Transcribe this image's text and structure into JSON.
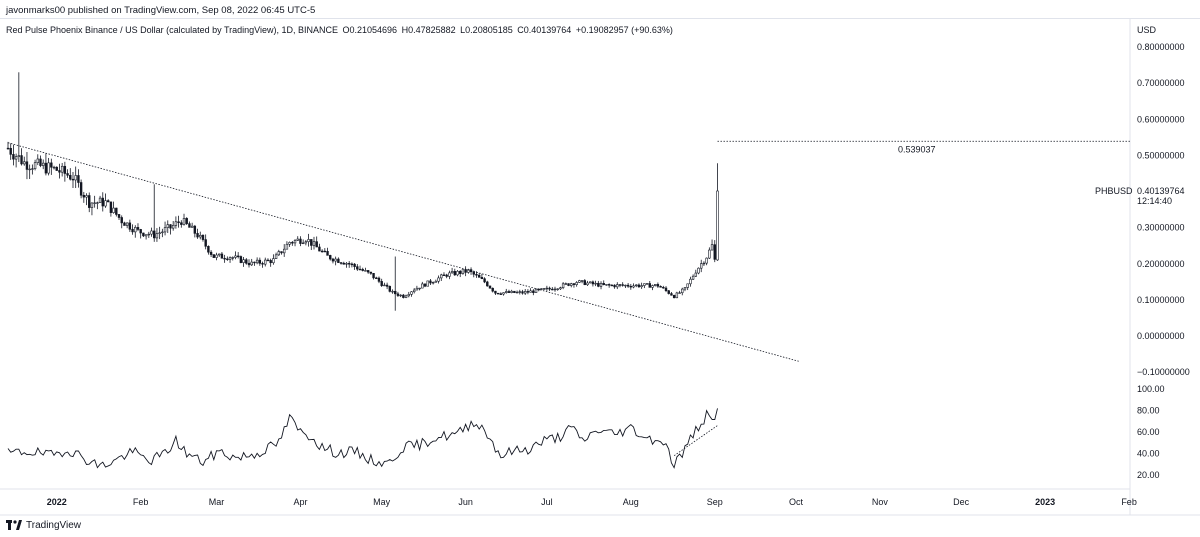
{
  "header": {
    "publisher_line": "javonmarks00 published on TradingView.com, Sep 08, 2022 06:45 UTC-5"
  },
  "legend": {
    "symbol": "Red Pulse Phoenix Binance / US Dollar (calculated by TradingView), 1D, BINANCE",
    "open": "O0.21054696",
    "high": "H0.47825882",
    "low": "L0.20805185",
    "close": "C0.40139764",
    "change": "+0.19082957 (+90.63%)"
  },
  "axis": {
    "currency": "USD"
  },
  "price_label": {
    "ticker": "PHBUSD",
    "value": "0.40139764",
    "countdown": "12:14:40"
  },
  "level_label": "0.539037",
  "footer": {
    "brand": "TradingView"
  },
  "colors": {
    "candle": "#131722",
    "line": "#131722",
    "background": "#ffffff",
    "grid_text": "#131722"
  },
  "chart_data": [
    {
      "type": "candlestick",
      "title": "",
      "ylim": [
        -0.12,
        0.83
      ],
      "yticks": [
        -0.1,
        0.0,
        0.1,
        0.2,
        0.3,
        0.4,
        0.5,
        0.6,
        0.7,
        0.8
      ],
      "ytick_labels": [
        "−0.10000000",
        "0.00000000",
        "0.10000000",
        "0.20000000",
        "0.30000000",
        "",
        "0.50000000",
        "0.60000000",
        "0.70000000",
        "0.80000000"
      ],
      "xlim_days": [
        0,
        400
      ],
      "xticks": [
        {
          "day": 18,
          "label": "2022"
        },
        {
          "day": 49,
          "label": "Feb"
        },
        {
          "day": 77,
          "label": "Mar"
        },
        {
          "day": 108,
          "label": "Apr"
        },
        {
          "day": 138,
          "label": "May"
        },
        {
          "day": 169,
          "label": "Jun"
        },
        {
          "day": 199,
          "label": "Jul"
        },
        {
          "day": 230,
          "label": "Aug"
        },
        {
          "day": 261,
          "label": "Sep"
        },
        {
          "day": 291,
          "label": "Oct"
        },
        {
          "day": 322,
          "label": "Nov"
        },
        {
          "day": 352,
          "label": "Dec"
        },
        {
          "day": 383,
          "label": "2023"
        },
        {
          "day": 414,
          "label": "Feb"
        }
      ],
      "close_profile": [
        [
          0,
          0.52
        ],
        [
          6,
          0.48
        ],
        [
          12,
          0.47
        ],
        [
          18,
          0.46
        ],
        [
          24,
          0.44
        ],
        [
          30,
          0.37
        ],
        [
          36,
          0.37
        ],
        [
          42,
          0.32
        ],
        [
          48,
          0.29
        ],
        [
          54,
          0.28
        ],
        [
          60,
          0.3
        ],
        [
          64,
          0.32
        ],
        [
          70,
          0.28
        ],
        [
          76,
          0.22
        ],
        [
          82,
          0.22
        ],
        [
          90,
          0.2
        ],
        [
          98,
          0.21
        ],
        [
          104,
          0.26
        ],
        [
          110,
          0.27
        ],
        [
          118,
          0.22
        ],
        [
          126,
          0.2
        ],
        [
          134,
          0.17
        ],
        [
          142,
          0.12
        ],
        [
          146,
          0.11
        ],
        [
          150,
          0.13
        ],
        [
          156,
          0.15
        ],
        [
          162,
          0.17
        ],
        [
          170,
          0.18
        ],
        [
          176,
          0.15
        ],
        [
          180,
          0.12
        ],
        [
          190,
          0.12
        ],
        [
          200,
          0.13
        ],
        [
          210,
          0.15
        ],
        [
          220,
          0.14
        ],
        [
          230,
          0.14
        ],
        [
          240,
          0.14
        ],
        [
          246,
          0.11
        ],
        [
          250,
          0.13
        ],
        [
          254,
          0.18
        ],
        [
          258,
          0.22
        ],
        [
          260,
          0.25
        ],
        [
          261,
          0.21
        ],
        [
          262,
          0.4
        ]
      ],
      "trendline": {
        "from": {
          "day": 0,
          "price": 0.535
        },
        "to": {
          "day": 292,
          "price": -0.07
        }
      },
      "horizontal_level": {
        "price": 0.539037,
        "from_day": 262
      },
      "last_price": 0.40139764
    },
    {
      "type": "line",
      "title": "",
      "ylim": [
        10,
        105
      ],
      "yticks": [
        20,
        40,
        60,
        80,
        100
      ],
      "ytick_labels": [
        "20.00",
        "40.00",
        "60.00",
        "80.00",
        "100.00"
      ],
      "values_profile": [
        [
          0,
          40
        ],
        [
          8,
          42
        ],
        [
          16,
          38
        ],
        [
          22,
          44
        ],
        [
          28,
          36
        ],
        [
          34,
          28
        ],
        [
          40,
          34
        ],
        [
          46,
          42
        ],
        [
          52,
          33
        ],
        [
          58,
          40
        ],
        [
          62,
          52
        ],
        [
          66,
          40
        ],
        [
          72,
          32
        ],
        [
          78,
          42
        ],
        [
          84,
          36
        ],
        [
          92,
          40
        ],
        [
          100,
          50
        ],
        [
          104,
          73
        ],
        [
          108,
          60
        ],
        [
          112,
          56
        ],
        [
          116,
          46
        ],
        [
          122,
          40
        ],
        [
          128,
          42
        ],
        [
          134,
          34
        ],
        [
          140,
          30
        ],
        [
          146,
          46
        ],
        [
          152,
          48
        ],
        [
          158,
          55
        ],
        [
          166,
          58
        ],
        [
          172,
          70
        ],
        [
          176,
          62
        ],
        [
          182,
          38
        ],
        [
          186,
          42
        ],
        [
          192,
          44
        ],
        [
          198,
          52
        ],
        [
          204,
          56
        ],
        [
          208,
          64
        ],
        [
          212,
          52
        ],
        [
          218,
          62
        ],
        [
          224,
          58
        ],
        [
          230,
          64
        ],
        [
          236,
          54
        ],
        [
          242,
          52
        ],
        [
          246,
          30
        ],
        [
          250,
          44
        ],
        [
          254,
          62
        ],
        [
          258,
          75
        ],
        [
          260,
          70
        ],
        [
          262,
          82
        ]
      ],
      "trendline": {
        "from": {
          "day": 246,
          "value": 38
        },
        "to": {
          "day": 262,
          "value": 66
        }
      }
    }
  ]
}
